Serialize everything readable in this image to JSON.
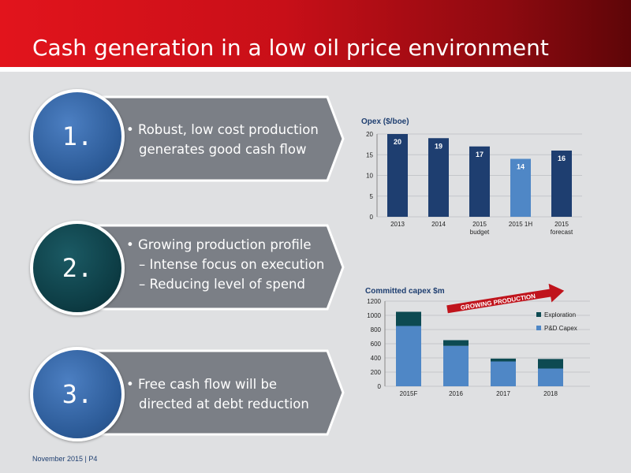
{
  "slide": {
    "title": "Cash generation in a low oil price environment",
    "footer": "November 2015 | P4"
  },
  "points": [
    {
      "number": "1.",
      "lines": [
        "• Robust, low cost production",
        "generates good cash flow"
      ]
    },
    {
      "number": "2.",
      "lines": [
        "• Growing production profile",
        "– Intense focus on execution",
        "– Reducing level of spend"
      ]
    },
    {
      "number": "3.",
      "lines": [
        "• Free cash flow will be",
        "directed at debt reduction"
      ]
    }
  ],
  "colors": {
    "dark_blue": "#1e3e70",
    "light_blue": "#4f87c6",
    "exploration": "#0d4a52",
    "arrow_grey": "#7b7f86",
    "accent_red": "#c0141c"
  },
  "chart_data": [
    {
      "type": "bar",
      "title": "Opex ($/boe)",
      "categories": [
        "2013",
        "2014",
        "2015\nbudget",
        "2015 1H",
        "2015\nforecast"
      ],
      "values": [
        20,
        19,
        17,
        14,
        16
      ],
      "data_labels": [
        "20",
        "19",
        "17",
        "14",
        "16"
      ],
      "highlight": [
        false,
        false,
        false,
        true,
        false
      ],
      "ylim": [
        0,
        20
      ],
      "yticks": [
        0,
        5,
        10,
        15,
        20
      ],
      "grid": true
    },
    {
      "type": "bar",
      "stacked": true,
      "title": "Committed capex $m",
      "categories": [
        "2015F",
        "2016",
        "2017",
        "2018"
      ],
      "series": [
        {
          "name": "P&D Capex",
          "values": [
            850,
            570,
            350,
            250
          ]
        },
        {
          "name": "Exploration",
          "values": [
            200,
            80,
            40,
            135
          ]
        }
      ],
      "ylim": [
        0,
        1200
      ],
      "yticks": [
        0,
        200,
        400,
        600,
        800,
        1000,
        1200
      ],
      "grid": true,
      "legend": "right",
      "annotation": "GROWING PRODUCTION"
    }
  ]
}
